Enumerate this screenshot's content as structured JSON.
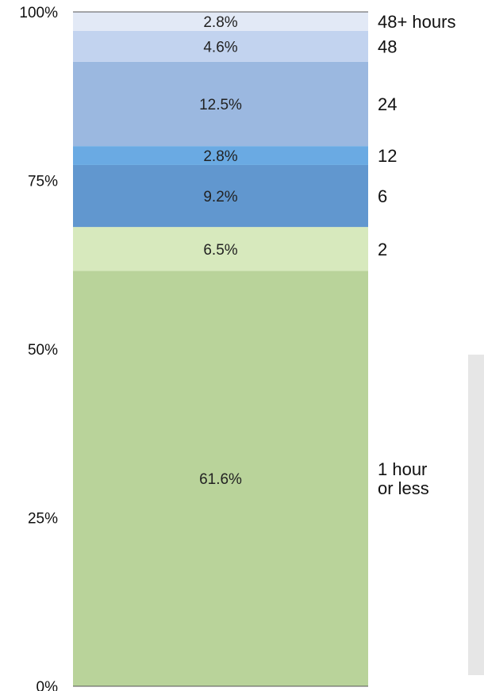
{
  "chart_data": {
    "type": "bar",
    "stacked": true,
    "ylim": [
      0,
      100
    ],
    "y_ticks": [
      "0%",
      "25%",
      "50%",
      "75%",
      "100%"
    ],
    "y_tick_values": [
      0,
      25,
      50,
      75,
      100
    ],
    "grid": false,
    "segments": [
      {
        "category": [
          "1 hour",
          "or less"
        ],
        "value": 61.6,
        "label": "61.6%",
        "color": "#b9d39a"
      },
      {
        "category": [
          "2"
        ],
        "value": 6.5,
        "label": "6.5%",
        "color": "#d7e9bd"
      },
      {
        "category": [
          "6"
        ],
        "value": 9.2,
        "label": "9.2%",
        "color": "#6197cf"
      },
      {
        "category": [
          "12"
        ],
        "value": 2.8,
        "label": "2.8%",
        "color": "#6aaae3"
      },
      {
        "category": [
          "24"
        ],
        "value": 12.5,
        "label": "12.5%",
        "color": "#9bb8e0"
      },
      {
        "category": [
          "48"
        ],
        "value": 4.6,
        "label": "4.6%",
        "color": "#c2d3ef"
      },
      {
        "category": [
          "48+ hours"
        ],
        "value": 2.8,
        "label": "2.8%",
        "color": "#e2e9f6"
      }
    ]
  }
}
